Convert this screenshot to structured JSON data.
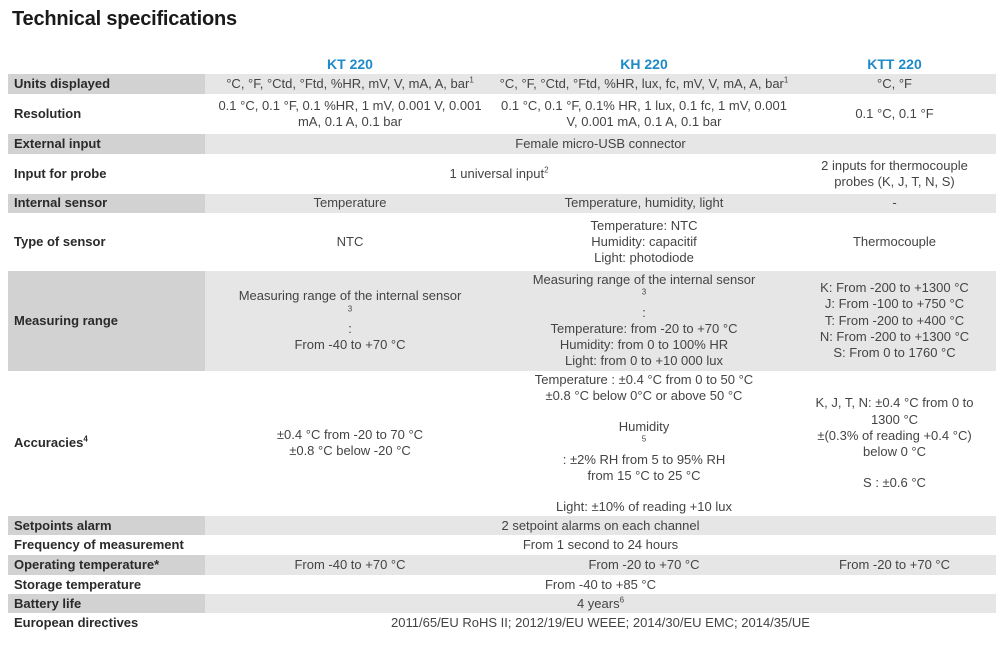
{
  "title": "Technical specifications",
  "models": [
    "KT 220",
    "KH 220",
    "KTT 220"
  ],
  "rows": {
    "units_displayed": {
      "label": "Units displayed",
      "kt": "°C, °F, °Ctd, °Ftd, %HR, mV, V, mA, A, bar",
      "kt_sup": "1",
      "kh": "°C, °F, °Ctd, °Ftd, %HR, lux, fc, mV, V, mA, A, bar",
      "kh_sup": "1",
      "ktt": "°C, °F"
    },
    "resolution": {
      "label": "Resolution",
      "kt": [
        "0.1 °C, 0.1 °F, 0.1 %HR, 1 mV, 0.001 V, 0.001",
        "mA, 0.1 A, 0.1 bar"
      ],
      "kh": [
        "0.1 °C, 0.1 °F, 0.1% HR, 1 lux, 0.1 fc, 1 mV, 0.001",
        "V, 0.001 mA, 0.1 A, 0.1 bar"
      ],
      "ktt": "0.1 °C, 0.1 °F"
    },
    "external_input": {
      "label": "External input",
      "all": "Female micro-USB connector"
    },
    "input_for_probe": {
      "label": "Input for probe",
      "kt_kh": "1 universal input",
      "kt_kh_sup": "2",
      "ktt": [
        "2 inputs for thermocouple",
        "probes (K, J, T, N, S)"
      ]
    },
    "internal_sensor": {
      "label": "Internal sensor",
      "kt": "Temperature",
      "kh": "Temperature, humidity, light",
      "ktt": "-"
    },
    "type_of_sensor": {
      "label": "Type of sensor",
      "kt": "NTC",
      "kh": [
        "Temperature: NTC",
        "Humidity: capacitif",
        "Light: photodiode"
      ],
      "ktt": "Thermocouple"
    },
    "measuring_range": {
      "label": "Measuring range",
      "kt_line1": "Measuring range of the internal sensor",
      "kt_line1_sup": "3",
      "kt_line1_suffix": " :",
      "kt_line2": "From -40 to +70 °C",
      "kh_line1": "Measuring range of the internal sensor",
      "kh_line1_sup": "3",
      "kh_line1_suffix": " :",
      "kh_rest": [
        "Temperature: from -20 to +70 °C",
        "Humidity: from 0 to 100% HR",
        "Light: from 0 to +10 000 lux"
      ],
      "ktt": [
        "K: From -200 to +1300 °C",
        "J: From -100 to +750 °C",
        "T: From -200 to +400 °C",
        "N: From -200 to +1300 °C",
        "S: From 0 to 1760 °C"
      ]
    },
    "accuracies": {
      "label": "Accuracies",
      "label_sup": "4",
      "kt": [
        "±0.4 °C from -20 to 70 °C",
        "±0.8 °C below -20 °C"
      ],
      "kh_temp": [
        "Temperature : ±0.4 °C from 0 to 50 °C",
        "±0.8 °C below 0°C or above 50 °C"
      ],
      "kh_hum_prefix": "Humidity",
      "kh_hum_sup": "5",
      "kh_hum_suffix": " : ±2% RH from 5 to 95% RH",
      "kh_hum_line2": "from 15 °C to 25 °C",
      "kh_light": "Light: ±10% of reading +10 lux",
      "ktt_a": [
        "K, J, T, N: ±0.4 °C from 0 to",
        "1300 °C",
        "±(0.3% of reading +0.4 °C)",
        "below 0 °C"
      ],
      "ktt_b": "S : ±0.6 °C"
    },
    "setpoints_alarm": {
      "label": "Setpoints alarm",
      "all": "2 setpoint alarms on each channel"
    },
    "frequency": {
      "label": "Frequency of measurement",
      "all": "From 1 second to 24 hours"
    },
    "operating_temperature": {
      "label": "Operating temperature*",
      "kt": "From -40 to +70 °C",
      "kh": "From -20 to +70 °C",
      "ktt": "From -20 to +70 °C"
    },
    "storage_temperature": {
      "label": "Storage temperature",
      "all": "From -40 to +85 °C"
    },
    "battery_life": {
      "label": "Battery life",
      "all": "4 years",
      "all_sup": "6"
    },
    "european_directives": {
      "label": "European directives",
      "all": "2011/65/EU RoHS II; 2012/19/EU WEEE; 2014/30/EU EMC; 2014/35/UE"
    }
  },
  "colors": {
    "accent": "#1e8bc8",
    "shade": "#e6e6e6",
    "label_shade": "#d2d2d2"
  }
}
